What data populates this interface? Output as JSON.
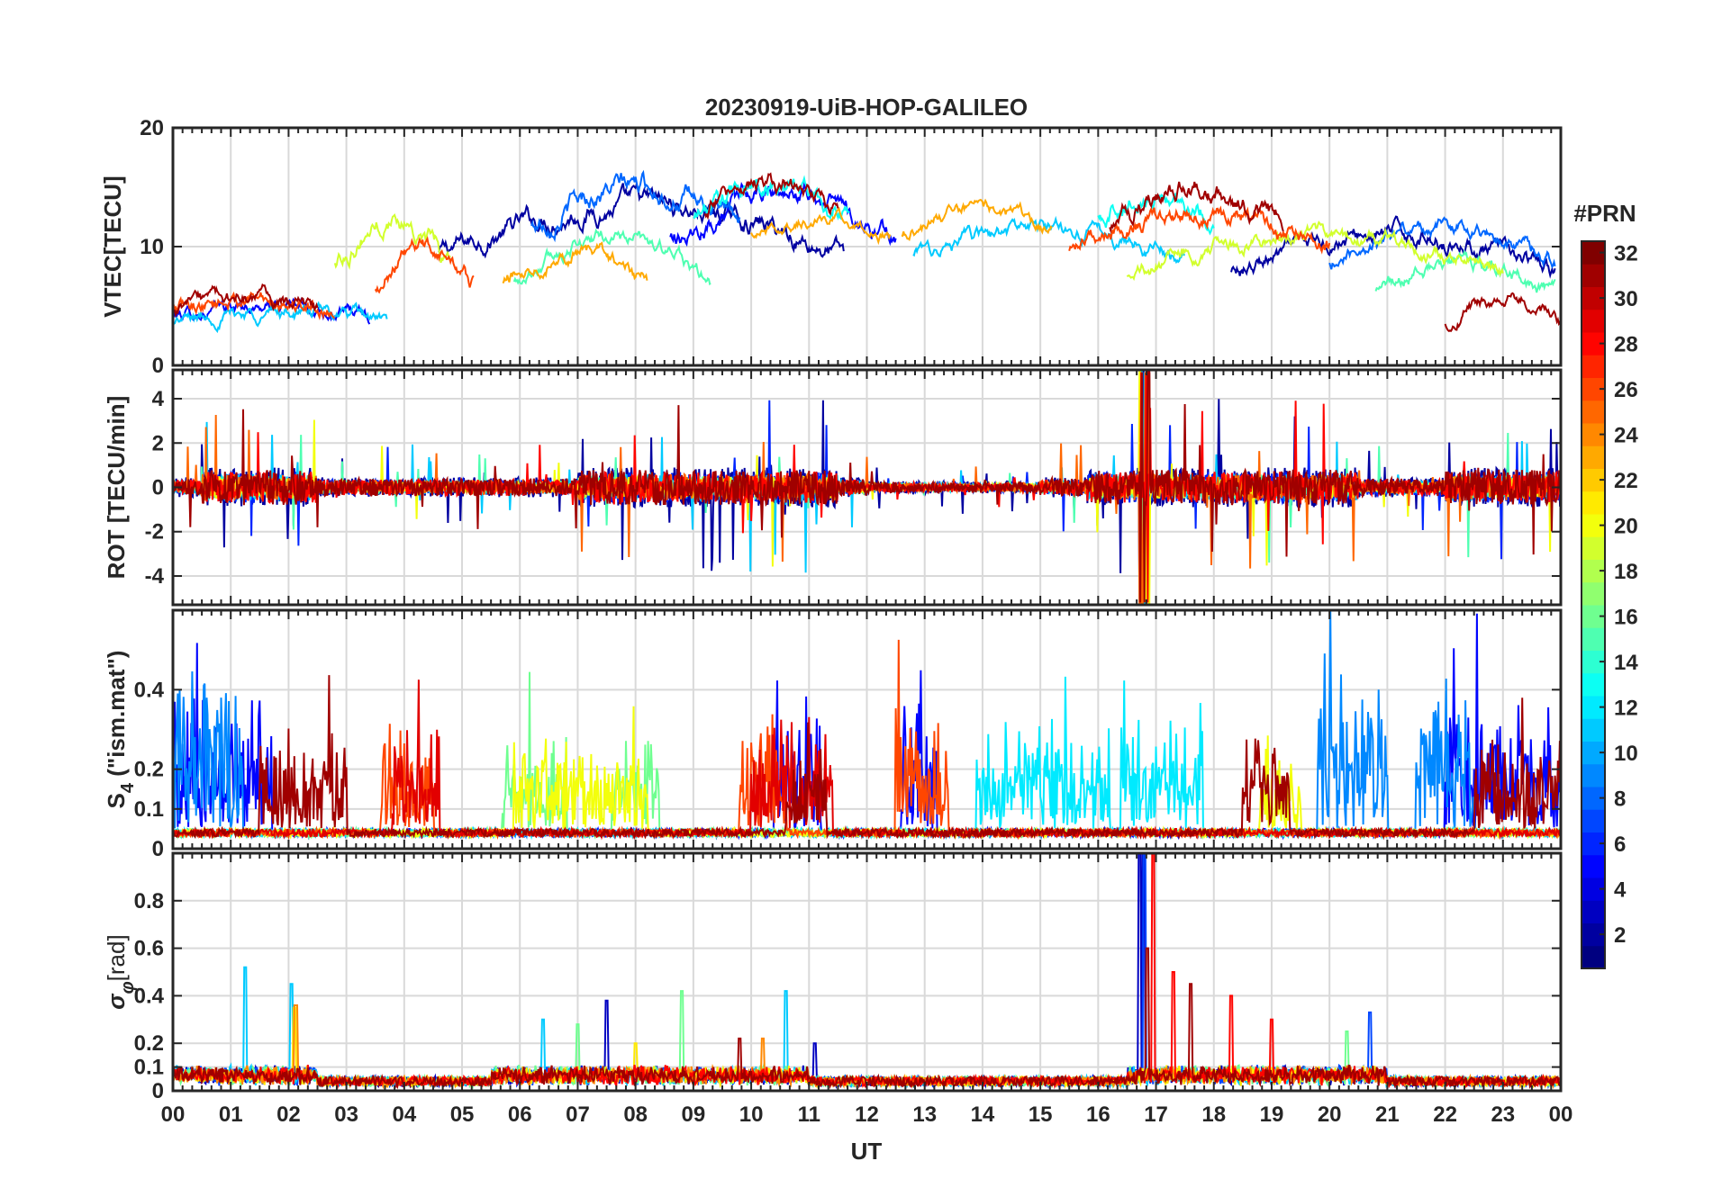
{
  "chart_data": {
    "type": "line",
    "title": "20230919-UiB-HOP-GALILEO",
    "xlabel": "UT",
    "x_range_hours": [
      0,
      24
    ],
    "x_tick_labels": [
      "00",
      "01",
      "02",
      "03",
      "04",
      "05",
      "06",
      "07",
      "08",
      "09",
      "10",
      "11",
      "12",
      "13",
      "14",
      "15",
      "16",
      "17",
      "18",
      "19",
      "20",
      "21",
      "22",
      "23",
      "00"
    ],
    "grid": true,
    "colorbar": {
      "title": "#PRN",
      "range": [
        1,
        32
      ],
      "tick_labels": [
        "2",
        "4",
        "6",
        "8",
        "10",
        "12",
        "14",
        "16",
        "18",
        "20",
        "22",
        "24",
        "26",
        "28",
        "30",
        "32"
      ],
      "tick_values": [
        2,
        4,
        6,
        8,
        10,
        12,
        14,
        16,
        18,
        20,
        22,
        24,
        26,
        28,
        30,
        32
      ],
      "colormap": "jet"
    },
    "panels": [
      {
        "id": "vtec",
        "ylabel": "VTEC[TECU]",
        "ylim": [
          0,
          20
        ],
        "y_ticks": [
          0,
          10,
          20
        ],
        "y_tick_labels": [
          "0",
          "10",
          "20"
        ],
        "series": [
          {
            "prn": 2,
            "segments": [
              {
                "start": 4.6,
                "end": 11.6,
                "base": 11,
                "amp": 4,
                "noise": 1.2
              },
              {
                "start": 18.3,
                "end": 23.9,
                "base": 9,
                "amp": 3.5,
                "noise": 1.0
              }
            ]
          },
          {
            "prn": 5,
            "segments": [
              {
                "start": 0.0,
                "end": 3.4,
                "base": 4.5,
                "amp": 0.8,
                "noise": 0.8
              },
              {
                "start": 8.6,
                "end": 12.5,
                "base": 12,
                "amp": 4,
                "noise": 1.2
              }
            ]
          },
          {
            "prn": 8,
            "segments": [
              {
                "start": 6.2,
                "end": 9.8,
                "base": 13,
                "amp": 3.5,
                "noise": 1.3
              },
              {
                "start": 20.0,
                "end": 23.9,
                "base": 10,
                "amp": 3,
                "noise": 0.9
              }
            ]
          },
          {
            "prn": 11,
            "segments": [
              {
                "start": 0.0,
                "end": 3.7,
                "base": 4,
                "amp": 0.8,
                "noise": 0.8
              },
              {
                "start": 12.8,
                "end": 17.5,
                "base": 10,
                "amp": 2.5,
                "noise": 0.9
              }
            ]
          },
          {
            "prn": 13,
            "segments": [
              {
                "start": 9.0,
                "end": 11.7,
                "base": 13.5,
                "amp": 3,
                "noise": 1.3
              },
              {
                "start": 16.0,
                "end": 18.0,
                "base": 13,
                "amp": 2,
                "noise": 1.2
              }
            ]
          },
          {
            "prn": 15,
            "segments": [
              {
                "start": 5.9,
                "end": 9.3,
                "base": 8.5,
                "amp": 4,
                "noise": 0.9
              },
              {
                "start": 20.8,
                "end": 23.9,
                "base": 7,
                "amp": 2.5,
                "noise": 0.9
              }
            ]
          },
          {
            "prn": 19,
            "segments": [
              {
                "start": 2.8,
                "end": 4.8,
                "base": 10,
                "amp": 4,
                "noise": 1.2
              },
              {
                "start": 16.5,
                "end": 23.0,
                "base": 9,
                "amp": 3,
                "noise": 0.9
              }
            ]
          },
          {
            "prn": 23,
            "segments": [
              {
                "start": 5.7,
                "end": 8.2,
                "base": 8,
                "amp": 3,
                "noise": 0.9
              },
              {
                "start": 10.0,
                "end": 12.4,
                "base": 11.5,
                "amp": 1.5,
                "noise": 0.7
              },
              {
                "start": 12.6,
                "end": 15.2,
                "base": 12,
                "amp": 2,
                "noise": 0.8
              }
            ]
          },
          {
            "prn": 26,
            "segments": [
              {
                "start": 0.0,
                "end": 2.8,
                "base": 5,
                "amp": 1,
                "noise": 0.9
              },
              {
                "start": 3.5,
                "end": 5.2,
                "base": 8,
                "amp": 3,
                "noise": 1.0
              },
              {
                "start": 15.5,
                "end": 20.0,
                "base": 11,
                "amp": 2.5,
                "noise": 1.1
              }
            ]
          },
          {
            "prn": 31,
            "segments": [
              {
                "start": 0.0,
                "end": 2.5,
                "base": 5,
                "amp": 1,
                "noise": 0.9
              },
              {
                "start": 9.2,
                "end": 11.5,
                "base": 14,
                "amp": 2,
                "noise": 1.1
              },
              {
                "start": 16.2,
                "end": 19.2,
                "base": 13,
                "amp": 3,
                "noise": 1.3
              },
              {
                "start": 22.0,
                "end": 24.0,
                "base": 4.5,
                "amp": 2,
                "noise": 0.8
              }
            ]
          }
        ]
      },
      {
        "id": "rot",
        "ylabel": "ROT [TECU/min]",
        "ylim": [
          -5.3,
          5.3
        ],
        "y_ticks": [
          -4,
          -2,
          0,
          2,
          4
        ],
        "y_tick_labels": [
          "-4",
          "-2",
          "0",
          "2",
          "4"
        ],
        "series": [
          {
            "prn": 2,
            "noise": 0.9,
            "spike_prob": 0.03
          },
          {
            "prn": 6,
            "noise": 0.7,
            "spike_prob": 0.02
          },
          {
            "prn": 11,
            "noise": 0.6,
            "spike_prob": 0.02
          },
          {
            "prn": 15,
            "noise": 0.5,
            "spike_prob": 0.015
          },
          {
            "prn": 20,
            "noise": 0.5,
            "spike_prob": 0.015
          },
          {
            "prn": 25,
            "noise": 0.6,
            "spike_prob": 0.02
          },
          {
            "prn": 28,
            "noise": 0.7,
            "spike_prob": 0.025
          },
          {
            "prn": 31,
            "noise": 0.8,
            "spike_prob": 0.025
          }
        ]
      },
      {
        "id": "s4",
        "ylabel": "S4 (\"ism.mat\")",
        "ylabel_main": "S",
        "ylabel_sub": "4",
        "ylabel_rest": " (\"ism.mat\")",
        "ylim": [
          0,
          0.6
        ],
        "y_ticks": [
          0,
          0.1,
          0.2,
          0.4
        ],
        "y_tick_labels": [
          "0",
          "0.1",
          "0.2",
          "0.4"
        ],
        "series": [
          {
            "prn": 5,
            "active": [
              [
                0.0,
                1.7
              ],
              [
                10.4,
                11.2
              ],
              [
                12.6,
                13.2
              ],
              [
                22.0,
                24.0
              ]
            ],
            "level": 0.25
          },
          {
            "prn": 9,
            "active": [
              [
                0.0,
                1.2
              ],
              [
                19.8,
                21.0
              ],
              [
                21.5,
                22.5
              ]
            ],
            "level": 0.3
          },
          {
            "prn": 12,
            "active": [
              [
                13.9,
                16.2
              ],
              [
                16.4,
                17.8
              ]
            ],
            "level": 0.2
          },
          {
            "prn": 16,
            "active": [
              [
                5.7,
                6.8
              ],
              [
                7.6,
                8.4
              ]
            ],
            "level": 0.18
          },
          {
            "prn": 20,
            "active": [
              [
                5.9,
                8.2
              ],
              [
                18.8,
                19.5
              ]
            ],
            "level": 0.16
          },
          {
            "prn": 26,
            "active": [
              [
                3.6,
                4.5
              ],
              [
                9.8,
                10.6
              ],
              [
                12.5,
                13.4
              ]
            ],
            "level": 0.2
          },
          {
            "prn": 29,
            "active": [
              [
                3.8,
                4.6
              ],
              [
                10.0,
                11.4
              ]
            ],
            "level": 0.22
          },
          {
            "prn": 31,
            "active": [
              [
                1.5,
                3.0
              ],
              [
                10.6,
                11.3
              ],
              [
                18.5,
                19.3
              ],
              [
                22.5,
                24.0
              ]
            ],
            "level": 0.18
          }
        ]
      },
      {
        "id": "sigma_phi",
        "ylabel": "σφ[rad]",
        "ylabel_main": "σ",
        "ylabel_sub": "φ",
        "ylabel_rest": "[rad]",
        "ylim": [
          0,
          1.0
        ],
        "y_ticks": [
          0,
          0.1,
          0.2,
          0.4,
          0.6,
          0.8
        ],
        "y_tick_labels": [
          "0",
          "0.1",
          "0.2",
          "0.4",
          "0.6",
          "0.8"
        ],
        "series": [
          {
            "prn": 3,
            "spikes": [
              [
                16.72,
                1.0
              ],
              [
                16.78,
                1.0
              ],
              [
                11.1,
                0.2
              ],
              [
                7.5,
                0.38
              ]
            ]
          },
          {
            "prn": 7,
            "spikes": [
              [
                20.7,
                0.33
              ],
              [
                16.8,
                1.0
              ]
            ]
          },
          {
            "prn": 11,
            "spikes": [
              [
                1.25,
                0.52
              ],
              [
                2.05,
                0.45
              ],
              [
                10.6,
                0.42
              ],
              [
                6.4,
                0.3
              ]
            ]
          },
          {
            "prn": 16,
            "spikes": [
              [
                8.8,
                0.42
              ],
              [
                20.3,
                0.25
              ],
              [
                7.0,
                0.28
              ]
            ]
          },
          {
            "prn": 21,
            "spikes": [
              [
                2.1,
                0.35
              ],
              [
                8.0,
                0.2
              ]
            ]
          },
          {
            "prn": 24,
            "spikes": [
              [
                2.12,
                0.36
              ],
              [
                10.2,
                0.22
              ]
            ]
          },
          {
            "prn": 28,
            "spikes": [
              [
                16.95,
                1.0
              ],
              [
                18.3,
                0.4
              ],
              [
                19.0,
                0.3
              ],
              [
                17.3,
                0.5
              ]
            ]
          },
          {
            "prn": 31,
            "spikes": [
              [
                16.85,
                0.6
              ],
              [
                17.6,
                0.45
              ],
              [
                9.8,
                0.22
              ]
            ]
          }
        ]
      }
    ]
  }
}
